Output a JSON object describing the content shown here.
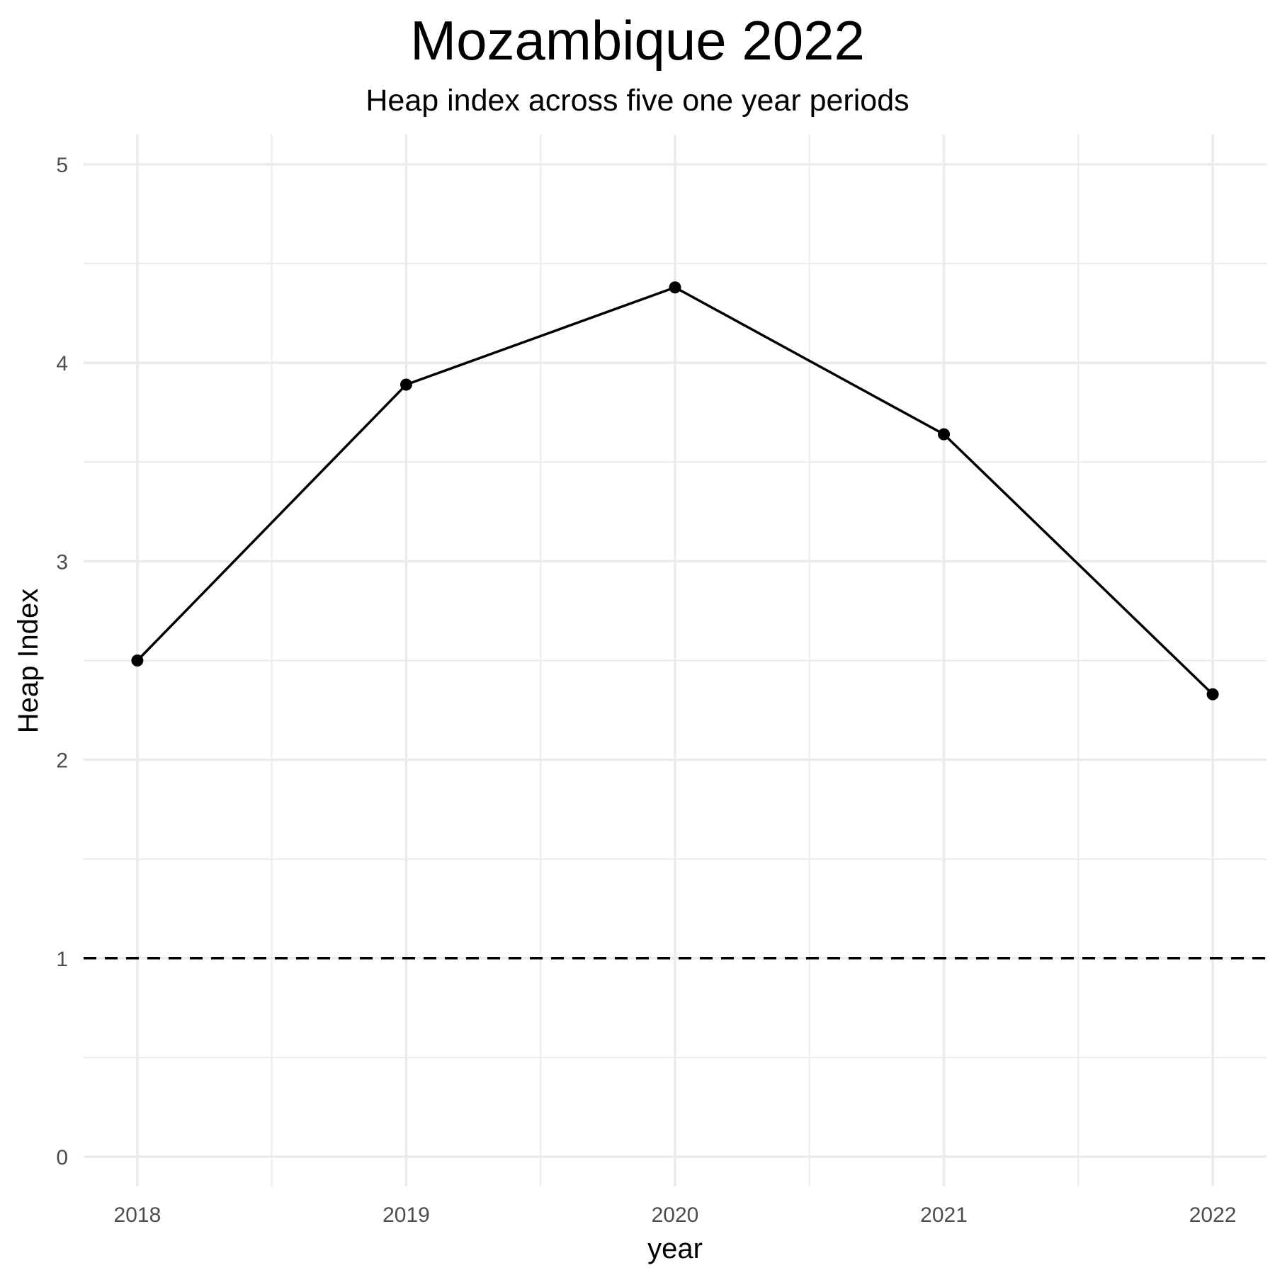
{
  "chart_data": {
    "type": "line",
    "title": "Mozambique 2022",
    "subtitle": "Heap index across five one year periods",
    "xlabel": "year",
    "ylabel": "Heap Index",
    "x": [
      2018,
      2019,
      2020,
      2021,
      2022
    ],
    "series": [
      {
        "values": [
          2.5,
          3.89,
          4.38,
          3.64,
          2.33
        ]
      }
    ],
    "x_ticks": [
      "2018",
      "2019",
      "2020",
      "2021",
      "2022"
    ],
    "y_ticks": [
      "0",
      "1",
      "2",
      "3",
      "4",
      "5"
    ],
    "xlim": [
      2017.8,
      2022.2
    ],
    "ylim": [
      -0.15,
      5.15
    ],
    "reference_line": {
      "y": 1,
      "style": "dashed"
    },
    "grid": true,
    "legend": "none",
    "colors": {
      "line": "#000000",
      "points": "#000000",
      "grid": "#ebebeb",
      "background": "#ffffff"
    }
  }
}
